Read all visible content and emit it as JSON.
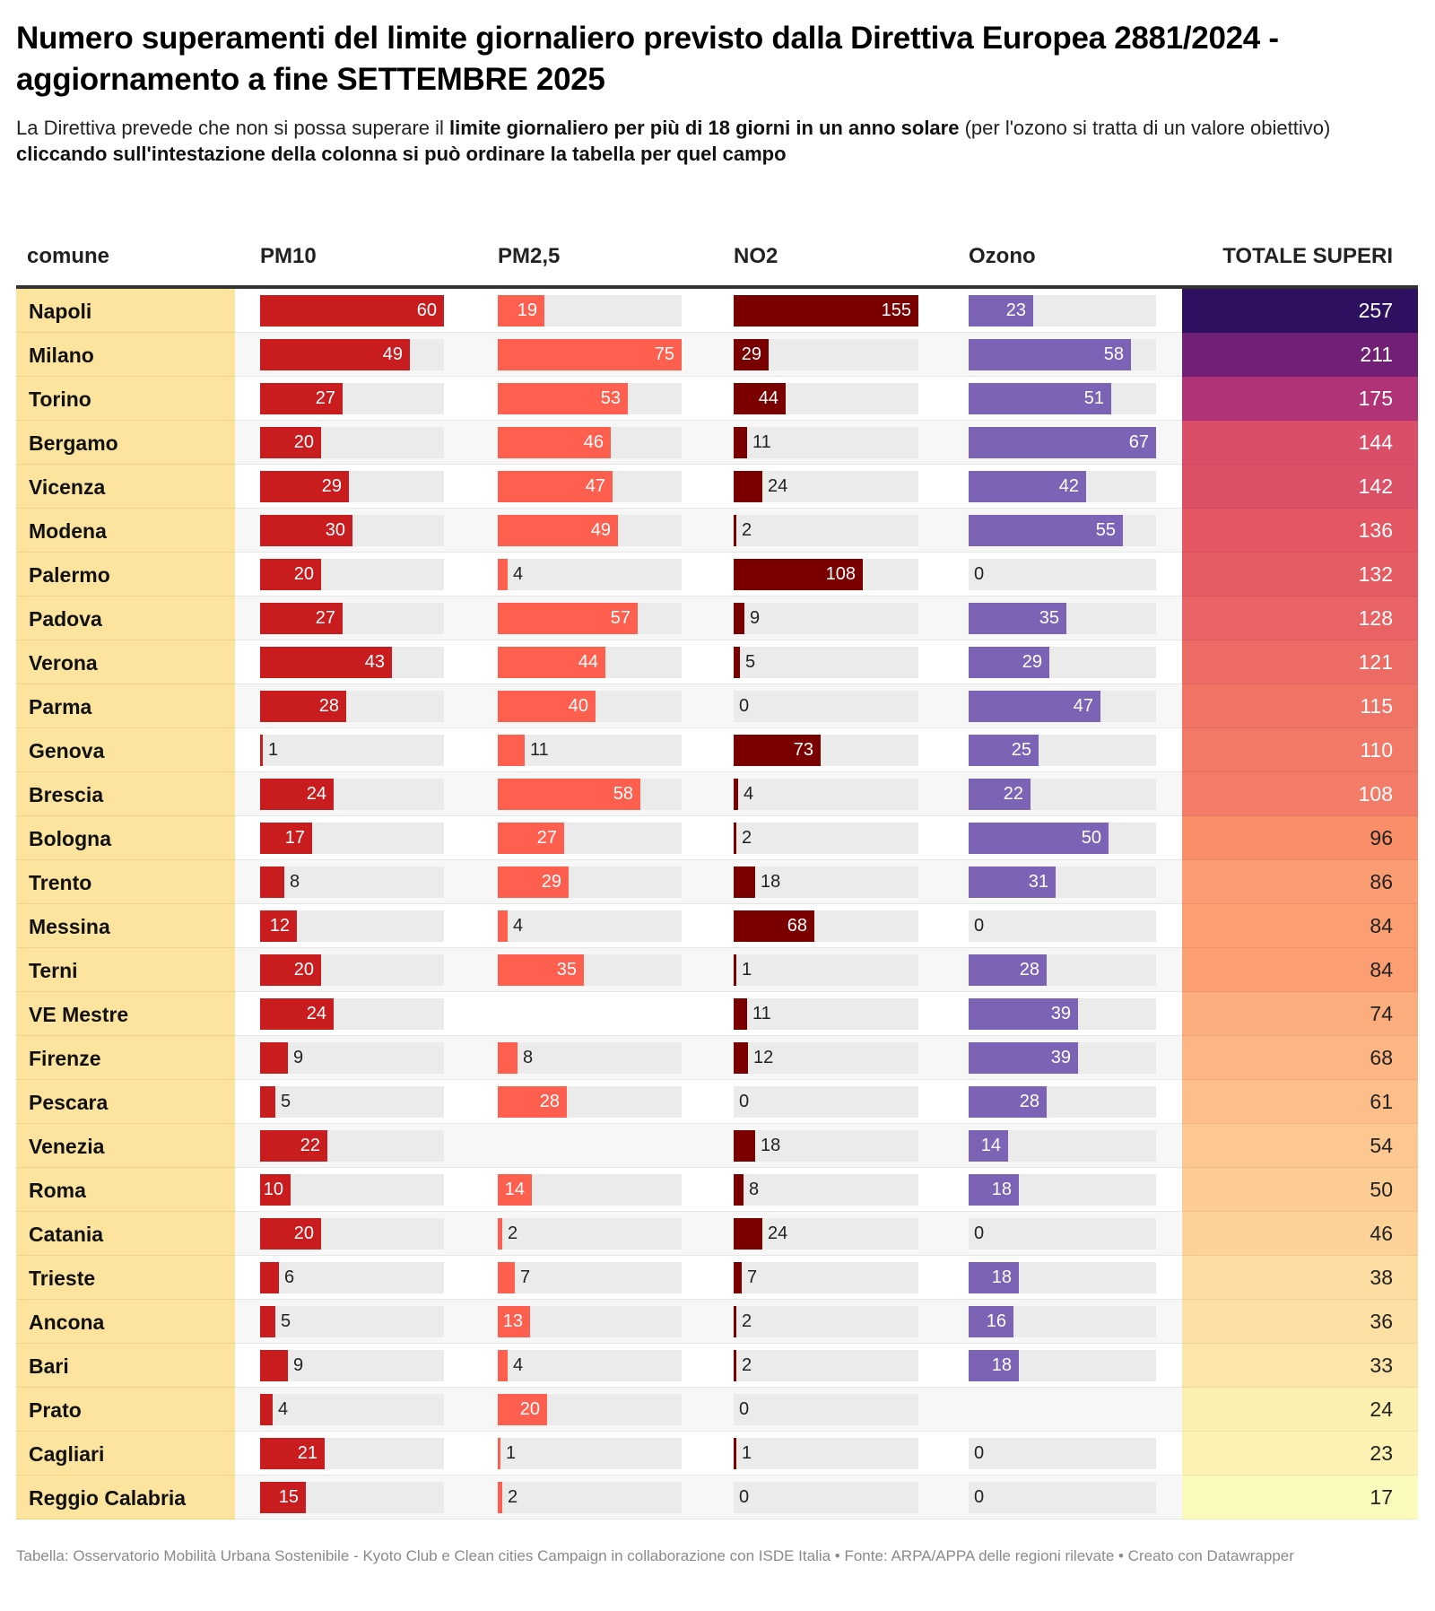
{
  "header": {
    "title": "Numero superamenti del limite giornaliero previsto dalla Direttiva Europea 2881/2024 - aggiornamento a fine SETTEMBRE 2025",
    "desc_part1": "La Direttiva prevede che non si possa superare il ",
    "desc_bold": "limite giornaliero per più di 18 giorni in un anno solare",
    "desc_part2": " (per l'ozono si tratta di un valore obiettivo)",
    "desc_line2": "cliccando sull'intestazione della colonna si può ordinare la tabella per quel campo"
  },
  "columns": {
    "city": "comune",
    "pm10": "PM10",
    "pm25": "PM2,5",
    "no2": "NO2",
    "ozono": "Ozono",
    "totale": "TOTALE SUPERI"
  },
  "colors": {
    "pm10": "#c81c1e",
    "pm25": "#ff5f4f",
    "no2": "#7a0000",
    "ozono": "#7c63b6",
    "city_bg": "#fde49e",
    "bar_bg": "#ebebeb"
  },
  "footer": "Tabella: Osservatorio Mobilità Urbana Sostenibile - Kyoto Club e Clean cities Campaign in collaborazione con ISDE Italia • Fonte: ARPA/APPA delle regioni rilevate • Creato con Datawrapper",
  "chart_data": {
    "type": "table",
    "title": "Numero superamenti del limite giornaliero previsto dalla Direttiva Europea 2881/2024 - aggiornamento a fine SETTEMBRE 2025",
    "columns": [
      "comune",
      "PM10",
      "PM2,5",
      "NO2",
      "Ozono",
      "TOTALE SUPERI"
    ],
    "bar_max": {
      "pm10": 60,
      "pm25": 75,
      "no2": 155,
      "ozono": 67
    },
    "rows": [
      {
        "city": "Napoli",
        "pm10": 60,
        "pm25": 19,
        "no2": 155,
        "ozono": 23,
        "totale": 257,
        "tot_color": "#2d1160",
        "tot_text": "#ffffff"
      },
      {
        "city": "Milano",
        "pm10": 49,
        "pm25": 75,
        "no2": 29,
        "ozono": 58,
        "totale": 211,
        "tot_color": "#721f76",
        "tot_text": "#ffffff"
      },
      {
        "city": "Torino",
        "pm10": 27,
        "pm25": 53,
        "no2": 44,
        "ozono": 51,
        "totale": 175,
        "tot_color": "#b03377",
        "tot_text": "#ffffff"
      },
      {
        "city": "Bergamo",
        "pm10": 20,
        "pm25": 46,
        "no2": 11,
        "ozono": 67,
        "totale": 144,
        "tot_color": "#da4e68",
        "tot_text": "#ffffff"
      },
      {
        "city": "Vicenza",
        "pm10": 29,
        "pm25": 47,
        "no2": 24,
        "ozono": 42,
        "totale": 142,
        "tot_color": "#db4f67",
        "tot_text": "#ffffff"
      },
      {
        "city": "Modena",
        "pm10": 30,
        "pm25": 49,
        "no2": 2,
        "ozono": 55,
        "totale": 136,
        "tot_color": "#e35662",
        "tot_text": "#ffffff"
      },
      {
        "city": "Palermo",
        "pm10": 20,
        "pm25": 4,
        "no2": 108,
        "ozono": 0,
        "totale": 132,
        "tot_color": "#e45b62",
        "tot_text": "#ffffff"
      },
      {
        "city": "Padova",
        "pm10": 27,
        "pm25": 57,
        "no2": 9,
        "ozono": 35,
        "totale": 128,
        "tot_color": "#e96364",
        "tot_text": "#ffffff"
      },
      {
        "city": "Verona",
        "pm10": 43,
        "pm25": 44,
        "no2": 5,
        "ozono": 29,
        "totale": 121,
        "tot_color": "#ec6c65",
        "tot_text": "#ffffff"
      },
      {
        "city": "Parma",
        "pm10": 28,
        "pm25": 40,
        "no2": 0,
        "ozono": 47,
        "totale": 115,
        "tot_color": "#ef7466",
        "tot_text": "#ffffff"
      },
      {
        "city": "Genova",
        "pm10": 1,
        "pm25": 11,
        "no2": 73,
        "ozono": 25,
        "totale": 110,
        "tot_color": "#f27968",
        "tot_text": "#ffffff"
      },
      {
        "city": "Brescia",
        "pm10": 24,
        "pm25": 58,
        "no2": 4,
        "ozono": 22,
        "totale": 108,
        "tot_color": "#f37c69",
        "tot_text": "#ffffff"
      },
      {
        "city": "Bologna",
        "pm10": 17,
        "pm25": 27,
        "no2": 2,
        "ozono": 50,
        "totale": 96,
        "tot_color": "#fa8e69",
        "tot_text": "#222222"
      },
      {
        "city": "Trento",
        "pm10": 8,
        "pm25": 29,
        "no2": 18,
        "ozono": 31,
        "totale": 86,
        "tot_color": "#fb9c72",
        "tot_text": "#222222"
      },
      {
        "city": "Messina",
        "pm10": 12,
        "pm25": 4,
        "no2": 68,
        "ozono": 0,
        "totale": 84,
        "tot_color": "#fb9f73",
        "tot_text": "#222222"
      },
      {
        "city": "Terni",
        "pm10": 20,
        "pm25": 35,
        "no2": 1,
        "ozono": 28,
        "totale": 84,
        "tot_color": "#fb9f73",
        "tot_text": "#222222"
      },
      {
        "city": "VE Mestre",
        "pm10": 24,
        "pm25": null,
        "no2": 11,
        "ozono": 39,
        "totale": 74,
        "tot_color": "#fcad7e",
        "tot_text": "#222222"
      },
      {
        "city": "Firenze",
        "pm10": 9,
        "pm25": 8,
        "no2": 12,
        "ozono": 39,
        "totale": 68,
        "tot_color": "#fcb583",
        "tot_text": "#222222"
      },
      {
        "city": "Pescara",
        "pm10": 5,
        "pm25": 28,
        "no2": 0,
        "ozono": 28,
        "totale": 61,
        "tot_color": "#fdbe8a",
        "tot_text": "#222222"
      },
      {
        "city": "Venezia",
        "pm10": 22,
        "pm25": null,
        "no2": 18,
        "ozono": 14,
        "totale": 54,
        "tot_color": "#fdc791",
        "tot_text": "#222222"
      },
      {
        "city": "Roma",
        "pm10": 10,
        "pm25": 14,
        "no2": 8,
        "ozono": 18,
        "totale": 50,
        "tot_color": "#fdcc95",
        "tot_text": "#222222"
      },
      {
        "city": "Catania",
        "pm10": 20,
        "pm25": 2,
        "no2": 24,
        "ozono": 0,
        "totale": 46,
        "tot_color": "#fdd299",
        "tot_text": "#222222"
      },
      {
        "city": "Trieste",
        "pm10": 6,
        "pm25": 7,
        "no2": 7,
        "ozono": 18,
        "totale": 38,
        "tot_color": "#fddda1",
        "tot_text": "#222222"
      },
      {
        "city": "Ancona",
        "pm10": 5,
        "pm25": 13,
        "no2": 2,
        "ozono": 16,
        "totale": 36,
        "tot_color": "#fde0a4",
        "tot_text": "#222222"
      },
      {
        "city": "Bari",
        "pm10": 9,
        "pm25": 4,
        "no2": 2,
        "ozono": 18,
        "totale": 33,
        "tot_color": "#fde4a8",
        "tot_text": "#222222"
      },
      {
        "city": "Prato",
        "pm10": 4,
        "pm25": 20,
        "no2": 0,
        "ozono": null,
        "totale": 24,
        "tot_color": "#fcf0b1",
        "tot_text": "#222222"
      },
      {
        "city": "Cagliari",
        "pm10": 21,
        "pm25": 1,
        "no2": 1,
        "ozono": 0,
        "totale": 23,
        "tot_color": "#fcf2b3",
        "tot_text": "#222222"
      },
      {
        "city": "Reggio Calabria",
        "pm10": 15,
        "pm25": 2,
        "no2": 0,
        "ozono": 0,
        "totale": 17,
        "tot_color": "#fbfabd",
        "tot_text": "#222222"
      }
    ]
  }
}
